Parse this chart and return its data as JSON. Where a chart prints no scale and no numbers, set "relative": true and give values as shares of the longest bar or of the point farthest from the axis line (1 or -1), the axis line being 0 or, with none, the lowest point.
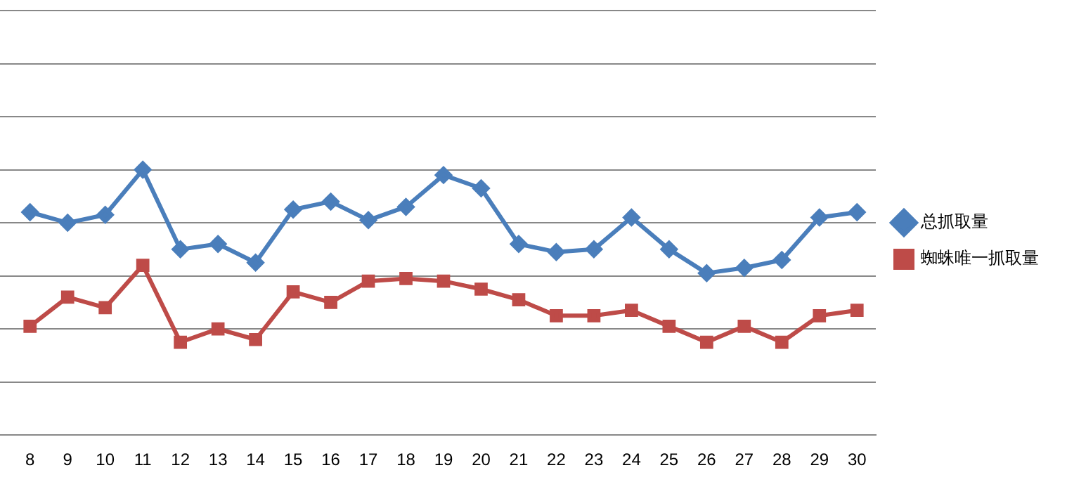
{
  "chart_data": {
    "type": "line",
    "relative": true,
    "categories": [
      "8",
      "9",
      "10",
      "11",
      "12",
      "13",
      "14",
      "15",
      "16",
      "17",
      "18",
      "19",
      "20",
      "21",
      "22",
      "23",
      "24",
      "25",
      "26",
      "27",
      "28",
      "29",
      "30"
    ],
    "series": [
      {
        "name": "总抓取量",
        "color": "#4a7ebb",
        "marker": "diamond",
        "values": [
          0.84,
          0.8,
          0.83,
          1,
          0.7,
          0.72,
          0.65,
          0.85,
          0.88,
          0.81,
          0.86,
          0.98,
          0.93,
          0.72,
          0.69,
          0.7,
          0.82,
          0.7,
          0.61,
          0.63,
          0.66,
          0.82,
          0.84
        ]
      },
      {
        "name": "蜘蛛唯一抓取量",
        "color": "#be4b48",
        "marker": "square",
        "values": [
          0.41,
          0.52,
          0.48,
          0.64,
          0.35,
          0.4,
          0.36,
          0.54,
          0.5,
          0.58,
          0.59,
          0.58,
          0.55,
          0.51,
          0.45,
          0.45,
          0.47,
          0.41,
          0.35,
          0.41,
          0.35,
          0.45,
          0.47
        ]
      }
    ],
    "grid": "y",
    "legend": "right",
    "line_style": "solid"
  }
}
